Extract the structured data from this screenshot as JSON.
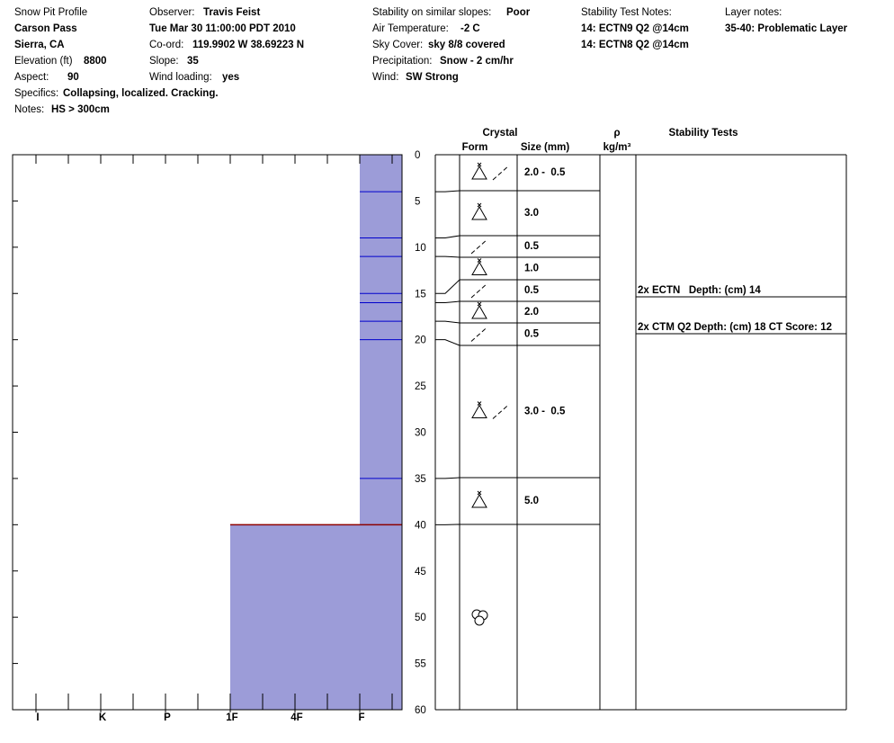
{
  "header": {
    "title": "Snow Pit Profile",
    "location": "Carson Pass",
    "region": "Sierra, CA",
    "elevation": {
      "label": "Elevation (ft)",
      "value": "8800"
    },
    "aspect": {
      "label": "Aspect:",
      "value": "90"
    },
    "specifics": {
      "label": "Specifics:",
      "value": "Collapsing, localized. Cracking."
    },
    "notes": {
      "label": "Notes:",
      "value": "HS > 300cm"
    },
    "observer": {
      "label": "Observer:",
      "value": "Travis Feist"
    },
    "date": "Tue Mar 30 11:00:00 PDT 2010",
    "coord": {
      "label": "Co-ord:",
      "value": "119.9902 W 38.69223 N"
    },
    "slope": {
      "label": "Slope:",
      "value": "35"
    },
    "wind_loading": {
      "label": "Wind loading:",
      "value": "yes"
    },
    "stability": {
      "label": "Stability on similar slopes:",
      "value": "Poor"
    },
    "air_temp": {
      "label": "Air Temperature:",
      "value": "-2 C"
    },
    "sky": {
      "label": "Sky Cover:",
      "value": "sky 8/8 covered"
    },
    "precip": {
      "label": "Precipitation:",
      "value": "Snow - 2 cm/hr"
    },
    "wind": {
      "label": "Wind:",
      "value": "SW Strong"
    },
    "test_notes": {
      "label": "Stability Test Notes:",
      "values": [
        "14: ECTN9 Q2 @14cm",
        "14: ECTN8 Q2 @14cm"
      ]
    },
    "layer_notes": {
      "label": "Layer notes:",
      "values": [
        "35-40: Problematic Layer"
      ]
    }
  },
  "chart_data": {
    "type": "snowpit",
    "ylim": [
      0,
      60
    ],
    "yticks": [
      0,
      5,
      10,
      15,
      20,
      25,
      30,
      35,
      40,
      45,
      50,
      55,
      60
    ],
    "hardness_scale": [
      "I",
      "K",
      "P",
      "1F",
      "4F",
      "F"
    ],
    "bar_color": "#9c9cd8",
    "columns": {
      "crystal": "Crystal",
      "form": "Form",
      "size": "Size (mm)",
      "density": "ρ",
      "density_unit": "kg/m³",
      "tests": "Stability Tests"
    },
    "layers": [
      {
        "top": 0,
        "bottom": 4,
        "hardness": "F",
        "forms": [
          "DH",
          "DF"
        ],
        "size": "2.0 -  0.5"
      },
      {
        "top": 4,
        "bottom": 9,
        "hardness": "F",
        "forms": [
          "DH"
        ],
        "size": "3.0"
      },
      {
        "top": 9,
        "bottom": 11,
        "hardness": "F",
        "forms": [
          "DF"
        ],
        "size": "0.5"
      },
      {
        "top": 11,
        "bottom": 15,
        "hardness": "F",
        "forms": [
          "DH"
        ],
        "size": "1.0"
      },
      {
        "top": 15,
        "bottom": 16,
        "hardness": "F",
        "forms": [
          "DF"
        ],
        "size": "0.5"
      },
      {
        "top": 16,
        "bottom": 18,
        "hardness": "F",
        "forms": [
          "DH"
        ],
        "size": "2.0"
      },
      {
        "top": 18,
        "bottom": 20,
        "hardness": "F",
        "forms": [
          "DF"
        ],
        "size": "0.5"
      },
      {
        "top": 20,
        "bottom": 35,
        "hardness": "F",
        "forms": [
          "DH",
          "DF"
        ],
        "size": "3.0 -  0.5"
      },
      {
        "top": 35,
        "bottom": 40,
        "hardness": "F",
        "forms": [
          "DH"
        ],
        "size": "5.0"
      },
      {
        "top": 40,
        "bottom": 60,
        "hardness": "1F",
        "forms": [
          "MF"
        ],
        "size": null
      }
    ],
    "stability_tests": [
      "2x ECTN   Depth: (cm) 14",
      "2x CTM Q2 Depth: (cm) 18 CT Score: 12"
    ]
  }
}
